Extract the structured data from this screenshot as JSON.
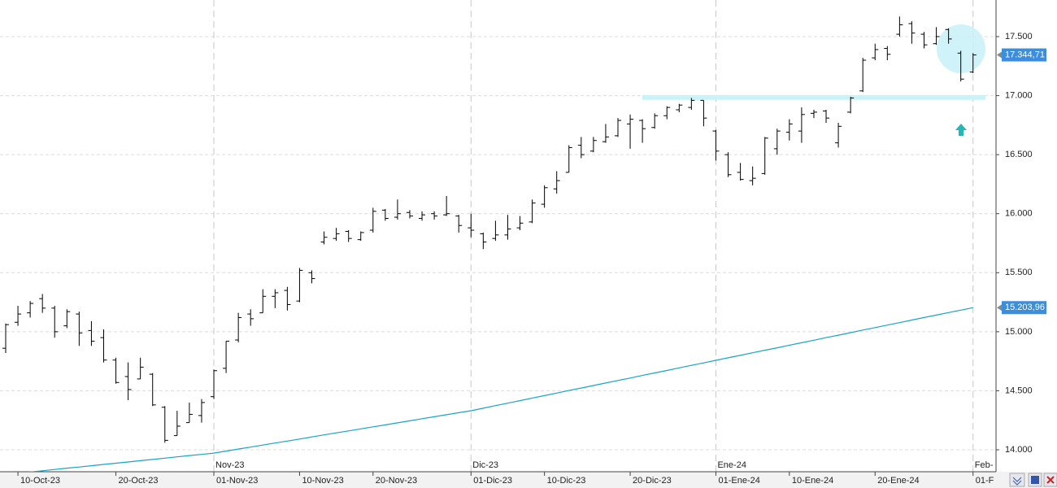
{
  "chart_data": {
    "type": "ohlc",
    "categories": [
      null,
      "10-Oct-23",
      null,
      null,
      null,
      null,
      null,
      null,
      null,
      "20-Oct-23",
      null,
      null,
      null,
      null,
      null,
      null,
      null,
      "01-Nov-23",
      null,
      null,
      null,
      null,
      null,
      null,
      "10-Nov-23",
      null,
      null,
      null,
      null,
      null,
      "20-Nov-23",
      null,
      null,
      null,
      null,
      null,
      null,
      null,
      "01-Dic-23",
      null,
      null,
      null,
      null,
      null,
      "10-Dic-23",
      null,
      null,
      null,
      null,
      null,
      null,
      "20-Dic-23",
      null,
      null,
      null,
      null,
      null,
      null,
      "01-Ene-24",
      null,
      null,
      null,
      null,
      null,
      "10-Ene-24",
      null,
      null,
      null,
      null,
      null,
      null,
      "20-Ene-24",
      null,
      null,
      null,
      null,
      null,
      null,
      null,
      "01-F"
    ],
    "month_labels": [
      null,
      null,
      null,
      null,
      null,
      null,
      null,
      null,
      null,
      null,
      null,
      null,
      null,
      null,
      null,
      null,
      null,
      "Nov-23",
      null,
      null,
      null,
      null,
      null,
      null,
      null,
      null,
      null,
      null,
      null,
      null,
      null,
      null,
      null,
      null,
      null,
      null,
      null,
      null,
      "Dic-23",
      null,
      null,
      null,
      null,
      null,
      null,
      null,
      null,
      null,
      null,
      null,
      null,
      null,
      null,
      null,
      null,
      null,
      null,
      null,
      "Ene-24",
      null,
      null,
      null,
      null,
      null,
      null,
      null,
      null,
      null,
      null,
      null,
      null,
      null,
      null,
      null,
      null,
      null,
      null,
      null,
      null,
      "Feb-"
    ],
    "open": [
      14860,
      15080,
      15160,
      15280,
      15200,
      15050,
      15150,
      15010,
      14950,
      14760,
      14620,
      14600,
      14640,
      14360,
      14120,
      14230,
      14290,
      14450,
      14690,
      14930,
      15150,
      15160,
      15300,
      15350,
      15260,
      15500,
      15760,
      15790,
      15850,
      15780,
      15860,
      16030,
      15970,
      16010,
      15960,
      16000,
      15990,
      15980,
      15880,
      15830,
      15790,
      15820,
      15880,
      15930,
      16080,
      16210,
      16350,
      16580,
      16530,
      16610,
      16660,
      16760,
      16790,
      16730,
      16830,
      16880,
      16900,
      16960,
      16700,
      16500,
      16350,
      16280,
      16340,
      16550,
      16690,
      16700,
      16850,
      16870,
      16600,
      16860,
      17040,
      17320,
      17400,
      17520,
      17610,
      17520,
      17440,
      17560,
      17360,
      17200
    ],
    "high": [
      15070,
      15220,
      15260,
      15320,
      15220,
      15190,
      15170,
      15090,
      15020,
      14780,
      14740,
      14780,
      14650,
      14370,
      14330,
      14400,
      14430,
      14680,
      14920,
      15160,
      15190,
      15360,
      15360,
      15380,
      15540,
      15520,
      15850,
      15880,
      15860,
      15850,
      16050,
      16040,
      16120,
      16030,
      16020,
      16020,
      16150,
      15990,
      16000,
      15840,
      15940,
      15990,
      15980,
      16120,
      16240,
      16360,
      16580,
      16650,
      16650,
      16760,
      16810,
      16840,
      16800,
      16850,
      16910,
      16930,
      16980,
      16960,
      16710,
      16520,
      16430,
      16400,
      16650,
      16720,
      16800,
      16900,
      16880,
      16880,
      16770,
      16990,
      17320,
      17440,
      17420,
      17670,
      17630,
      17540,
      17580,
      17570,
      17380,
      17360
    ],
    "low": [
      14820,
      15050,
      15120,
      15160,
      14950,
      15030,
      14880,
      14880,
      14740,
      14560,
      14420,
      14600,
      14370,
      14060,
      14120,
      14230,
      14230,
      14430,
      14650,
      14910,
      15050,
      15160,
      15200,
      15180,
      15250,
      15410,
      15740,
      15770,
      15760,
      15770,
      15840,
      15940,
      15950,
      15960,
      15940,
      15950,
      15980,
      15840,
      15800,
      15700,
      15770,
      15780,
      15860,
      15920,
      16050,
      16170,
      16350,
      16470,
      16520,
      16600,
      16650,
      16550,
      16600,
      16720,
      16800,
      16860,
      16880,
      16740,
      16450,
      16310,
      16280,
      16240,
      16330,
      16500,
      16620,
      16600,
      16810,
      16770,
      16560,
      16850,
      17030,
      17300,
      17300,
      17500,
      17440,
      17400,
      17430,
      17440,
      17120,
      17190
    ],
    "close": [
      15060,
      15150,
      15240,
      15200,
      15000,
      15170,
      14990,
      14920,
      14760,
      14570,
      14510,
      14700,
      14380,
      14080,
      14200,
      14300,
      14400,
      14670,
      14920,
      15120,
      15110,
      15300,
      15330,
      15230,
      15520,
      15450,
      15800,
      15830,
      15790,
      15840,
      16020,
      15960,
      16000,
      15980,
      15990,
      15980,
      16000,
      15900,
      15860,
      15760,
      15820,
      15870,
      15920,
      16090,
      16220,
      16280,
      16560,
      16500,
      16620,
      16650,
      16790,
      16800,
      16720,
      16830,
      16900,
      16920,
      16960,
      16810,
      16530,
      16330,
      16290,
      16300,
      16640,
      16700,
      16760,
      16840,
      16860,
      16810,
      16740,
      16980,
      17300,
      17390,
      17350,
      17600,
      17530,
      17430,
      17500,
      17480,
      17140,
      17344.71
    ],
    "color": "#000000",
    "ma": {
      "color": "#1aa3c8",
      "values": [
        13790,
        13801,
        13811,
        13822,
        13833,
        13844,
        13854,
        13865,
        13876,
        13886,
        13897,
        13908,
        13918,
        13929,
        13940,
        13951,
        13961,
        13972,
        13989,
        14006,
        14023,
        14040,
        14057,
        14074,
        14091,
        14109,
        14126,
        14143,
        14160,
        14177,
        14194,
        14211,
        14228,
        14245,
        14263,
        14280,
        14297,
        14314,
        14331,
        14352,
        14374,
        14395,
        14416,
        14438,
        14459,
        14480,
        14502,
        14523,
        14544,
        14566,
        14587,
        14608,
        14630,
        14651,
        14672,
        14694,
        14715,
        14736,
        14758,
        14779,
        14800,
        14822,
        14843,
        14864,
        14886,
        14907,
        14928,
        14950,
        14971,
        14992,
        15014,
        15035,
        15056,
        15077,
        15099,
        15120,
        15141,
        15162,
        15183,
        15203.96
      ]
    },
    "price_labels": [
      {
        "value": 17344.71,
        "label": "17.344,71",
        "color": "#3c8ddc"
      },
      {
        "value": 15203.96,
        "label": "15.203,96",
        "color": "#3c8ddc"
      }
    ],
    "hline": {
      "value": 16985,
      "color": "#c8f4f8"
    },
    "ylim": [
      13814,
      17810
    ],
    "yticks": [
      {
        "value": 14000,
        "label": "14.000"
      },
      {
        "value": 14500,
        "label": "14.500"
      },
      {
        "value": 15000,
        "label": "15.000"
      },
      {
        "value": 15500,
        "label": "15.500"
      },
      {
        "value": 16000,
        "label": "16.000"
      },
      {
        "value": 16500,
        "label": "16.500"
      },
      {
        "value": 17000,
        "label": "17.000"
      },
      {
        "value": 17500,
        "label": "17.500"
      }
    ],
    "grid": true
  }
}
